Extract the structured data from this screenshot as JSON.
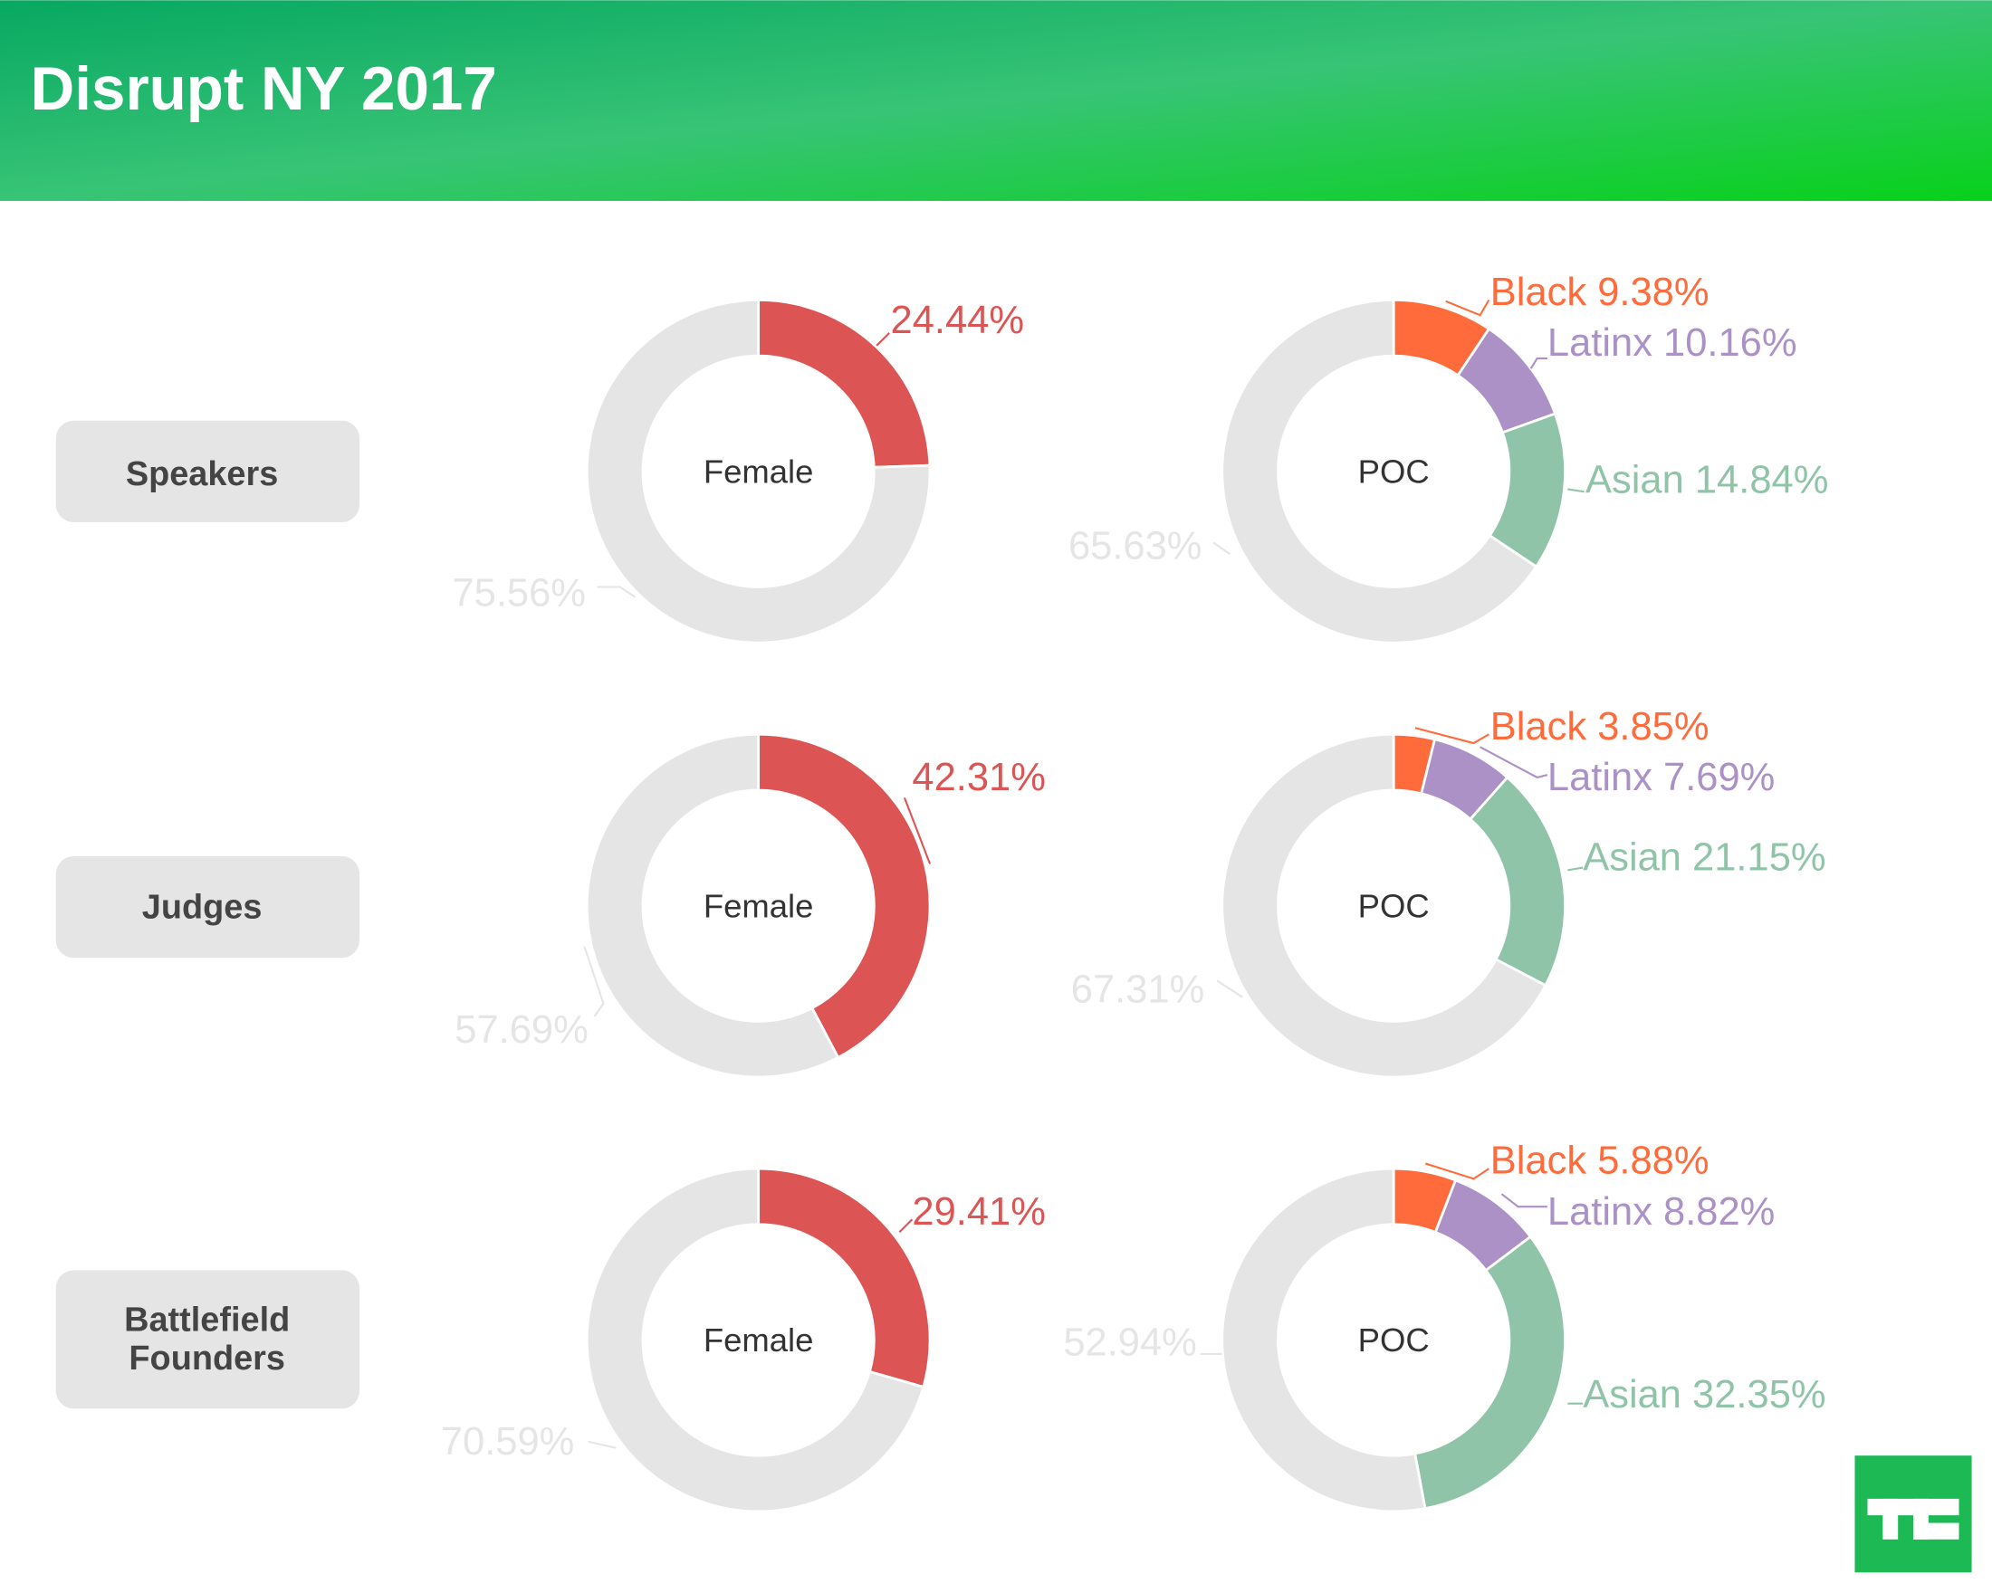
{
  "title": "Disrupt NY 2017",
  "colors": {
    "female": "#DD5454",
    "other": "#E5E5E5",
    "black": "#FF6B3A",
    "latinx": "#AB91C6",
    "asian": "#90C4A8",
    "row_label_bg": "#E5E5E5",
    "logo": "#1DB954"
  },
  "logo_text": "TC",
  "chart_data": [
    {
      "type": "pie",
      "group": "Speakers",
      "center_label": "Female",
      "slices": [
        {
          "name": "Female",
          "value": 24.44,
          "label": "24.44%"
        },
        {
          "name": "Other",
          "value": 75.56,
          "label": "75.56%"
        }
      ]
    },
    {
      "type": "pie",
      "group": "Speakers",
      "center_label": "POC",
      "slices": [
        {
          "name": "Black",
          "value": 9.38,
          "label": "Black 9.38%"
        },
        {
          "name": "Latinx",
          "value": 10.16,
          "label": "Latinx 10.16%"
        },
        {
          "name": "Asian",
          "value": 14.84,
          "label": "Asian 14.84%"
        },
        {
          "name": "Other",
          "value": 65.63,
          "label": "65.63%"
        }
      ]
    },
    {
      "type": "pie",
      "group": "Judges",
      "center_label": "Female",
      "slices": [
        {
          "name": "Female",
          "value": 42.31,
          "label": "42.31%"
        },
        {
          "name": "Other",
          "value": 57.69,
          "label": "57.69%"
        }
      ]
    },
    {
      "type": "pie",
      "group": "Judges",
      "center_label": "POC",
      "slices": [
        {
          "name": "Black",
          "value": 3.85,
          "label": "Black 3.85%"
        },
        {
          "name": "Latinx",
          "value": 7.69,
          "label": "Latinx 7.69%"
        },
        {
          "name": "Asian",
          "value": 21.15,
          "label": "Asian 21.15%"
        },
        {
          "name": "Other",
          "value": 67.31,
          "label": "67.31%"
        }
      ]
    },
    {
      "type": "pie",
      "group": "Battlefield Founders",
      "center_label": "Female",
      "slices": [
        {
          "name": "Female",
          "value": 29.41,
          "label": "29.41%"
        },
        {
          "name": "Other",
          "value": 70.59,
          "label": "70.59%"
        }
      ]
    },
    {
      "type": "pie",
      "group": "Battlefield Founders",
      "center_label": "POC",
      "slices": [
        {
          "name": "Black",
          "value": 5.88,
          "label": "Black 5.88%"
        },
        {
          "name": "Latinx",
          "value": 8.82,
          "label": "Latinx 8.82%"
        },
        {
          "name": "Asian",
          "value": 32.35,
          "label": "Asian 32.35%"
        },
        {
          "name": "Other",
          "value": 52.94,
          "label": "52.94%"
        }
      ]
    }
  ],
  "rows": [
    {
      "label_lines": [
        "Speakers"
      ]
    },
    {
      "label_lines": [
        "Judges"
      ]
    },
    {
      "label_lines": [
        "Battlefield",
        "Founders"
      ]
    }
  ]
}
